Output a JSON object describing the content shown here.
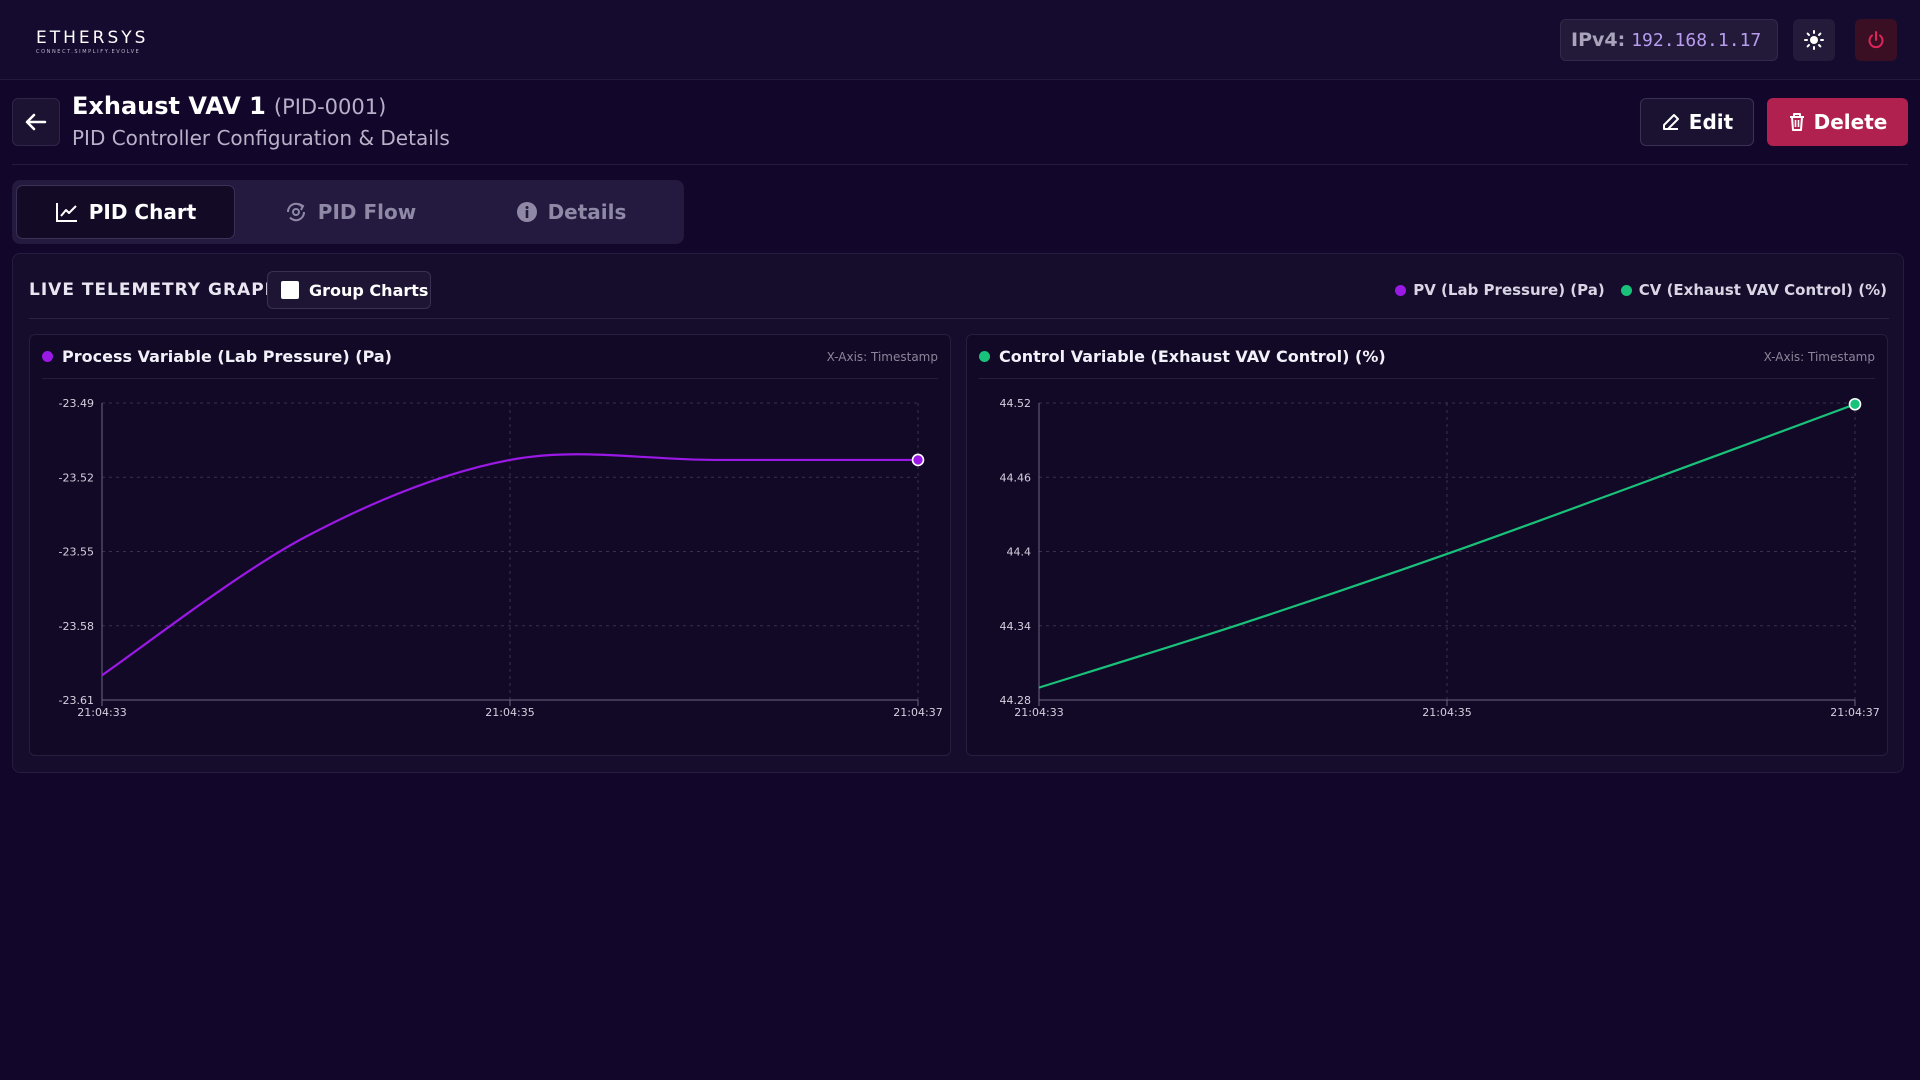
{
  "app": {
    "logo_text": "ETHERSYS",
    "logo_tagline": "CONNECT.SIMPLIFY.EVOLVE",
    "ip_label": "IPv4:",
    "ip_value": "192.168.1.17"
  },
  "header": {
    "title": "Exhaust VAV 1",
    "title_id": "(PID-0001)",
    "subtitle": "PID Controller Configuration & Details",
    "edit_label": "Edit",
    "delete_label": "Delete"
  },
  "tabs": [
    {
      "label": "PID Chart",
      "icon": "chart-line-icon",
      "active": true
    },
    {
      "label": "PID Flow",
      "icon": "flow-cycle-icon",
      "active": false
    },
    {
      "label": "Details",
      "icon": "info-icon",
      "active": false
    }
  ],
  "telemetry": {
    "title": "LIVE TELEMETRY GRAPH",
    "group_label": "Group Charts",
    "legend": [
      {
        "label": "PV (Lab Pressure) (Pa)",
        "color": "#9b19e6"
      },
      {
        "label": "CV (Exhaust VAV Control) (%)",
        "color": "#19c27a"
      }
    ]
  },
  "colors": {
    "pv": "#9b19e6",
    "cv": "#19c27a",
    "delete": "#b0214f"
  },
  "chart_data": [
    {
      "type": "line",
      "title": "Process Variable (Lab Pressure) (Pa)",
      "xaxis_note": "X-Axis: Timestamp",
      "x": [
        "21:04:33",
        "21:04:34",
        "21:04:35",
        "21:04:36",
        "21:04:37"
      ],
      "xticks": [
        "21:04:33",
        "21:04:35",
        "21:04:37"
      ],
      "yticks": [
        "-23.49",
        "-23.52",
        "-23.55",
        "-23.58",
        "-23.61"
      ],
      "ylim": [
        -23.61,
        -23.49
      ],
      "series": [
        {
          "values": [
            -23.6,
            -23.544,
            -23.513,
            -23.513,
            -23.513
          ],
          "color": "#9b19e6"
        }
      ],
      "grid": true
    },
    {
      "type": "line",
      "title": "Control Variable (Exhaust VAV Control) (%)",
      "xaxis_note": "X-Axis: Timestamp",
      "x": [
        "21:04:33",
        "21:04:34",
        "21:04:35",
        "21:04:36",
        "21:04:37"
      ],
      "xticks": [
        "21:04:33",
        "21:04:35",
        "21:04:37"
      ],
      "yticks": [
        "44.52",
        "44.46",
        "44.4",
        "44.34",
        "44.28"
      ],
      "ylim": [
        44.28,
        44.52
      ],
      "series": [
        {
          "values": [
            44.29,
            44.342,
            44.398,
            44.458,
            44.519
          ],
          "color": "#19c27a"
        }
      ],
      "grid": true
    }
  ]
}
